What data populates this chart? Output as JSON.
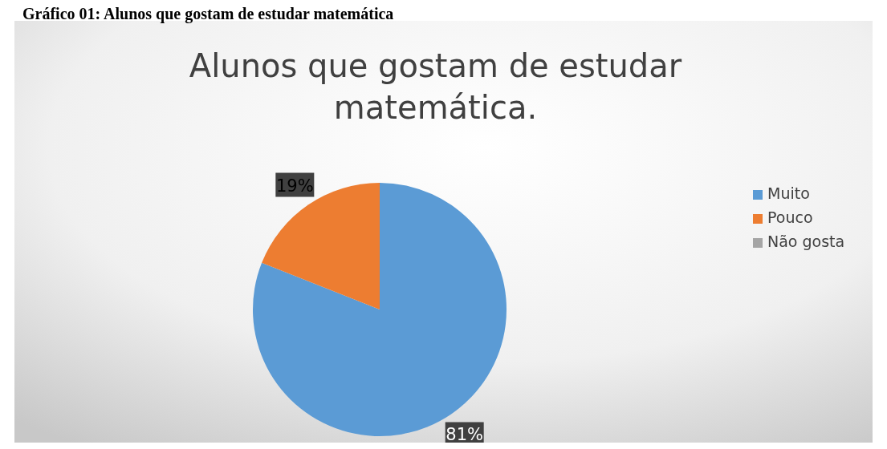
{
  "chart_data": {
    "type": "pie",
    "title": "Alunos que gostam de estudar matemática.",
    "annotations": [
      "Gráfico 01: Alunos que gostam de estudar matemática"
    ],
    "categories": [
      "Muito",
      "Pouco",
      "Não gosta"
    ],
    "values": [
      81,
      19,
      0
    ],
    "colors": [
      "#5b9bd5",
      "#ed7d31",
      "#a5a5a5"
    ],
    "value_labels": [
      "81%",
      "19%",
      null
    ],
    "legend": "right"
  }
}
